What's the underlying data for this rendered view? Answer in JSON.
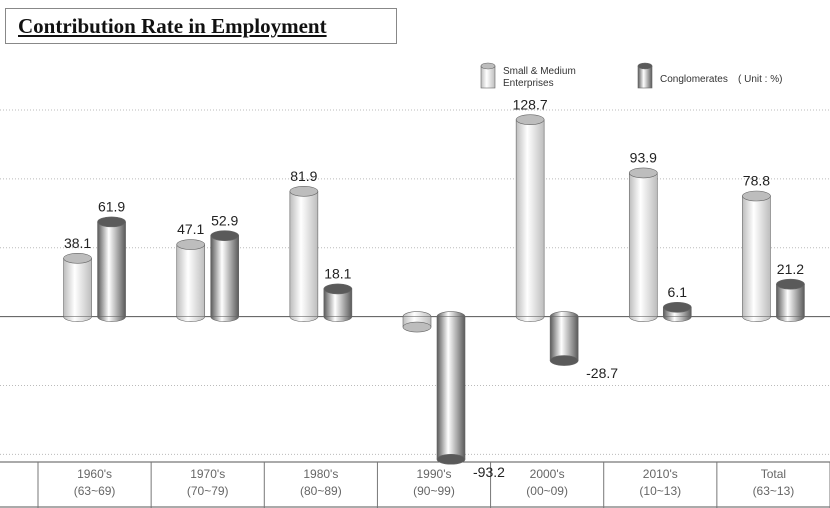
{
  "chart_data": {
    "type": "bar",
    "title": "Contribution Rate in Employment",
    "unit": "( Unit : %)",
    "categories": [
      [
        "1960's",
        "(63~69)"
      ],
      [
        "1970's",
        "(70~79)"
      ],
      [
        "1980's",
        "(80~89)"
      ],
      [
        "1990's",
        "(90~99)"
      ],
      [
        "2000's",
        "(00~09)"
      ],
      [
        "2010's",
        "(10~13)"
      ],
      [
        "Total",
        "(63~13)"
      ]
    ],
    "series": [
      {
        "name": "Small & Medium Enterprises",
        "color": "#bdbdbd",
        "values": [
          38.1,
          47.1,
          81.9,
          -6.8,
          128.7,
          93.9,
          78.8
        ]
      },
      {
        "name": "Conglomerates",
        "color": "#5a5a5a",
        "values": [
          61.9,
          52.9,
          18.1,
          -93.2,
          -28.7,
          6.1,
          21.2
        ]
      }
    ],
    "ylim": [
      -95,
      135
    ],
    "yticks": [
      -90,
      -45,
      0,
      45,
      90,
      135
    ],
    "grid": true
  }
}
